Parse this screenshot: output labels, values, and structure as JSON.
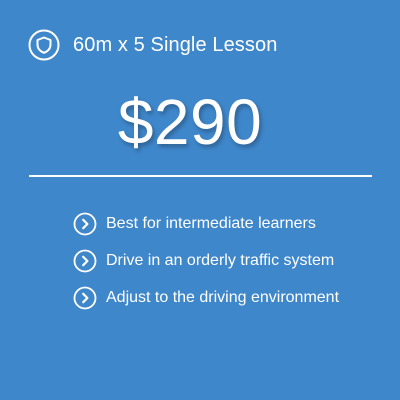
{
  "accent_color": "#3f87cb",
  "header": {
    "icon": "shield-icon",
    "title": "60m x 5 Single Lesson"
  },
  "price": {
    "amount": "$290"
  },
  "features": [
    {
      "icon": "chevron-right-circle-icon",
      "label": "Best for intermediate learners"
    },
    {
      "icon": "chevron-right-circle-icon",
      "label": "Drive in an orderly traffic system"
    },
    {
      "icon": "chevron-right-circle-icon",
      "label": "Adjust to the driving environment"
    }
  ]
}
